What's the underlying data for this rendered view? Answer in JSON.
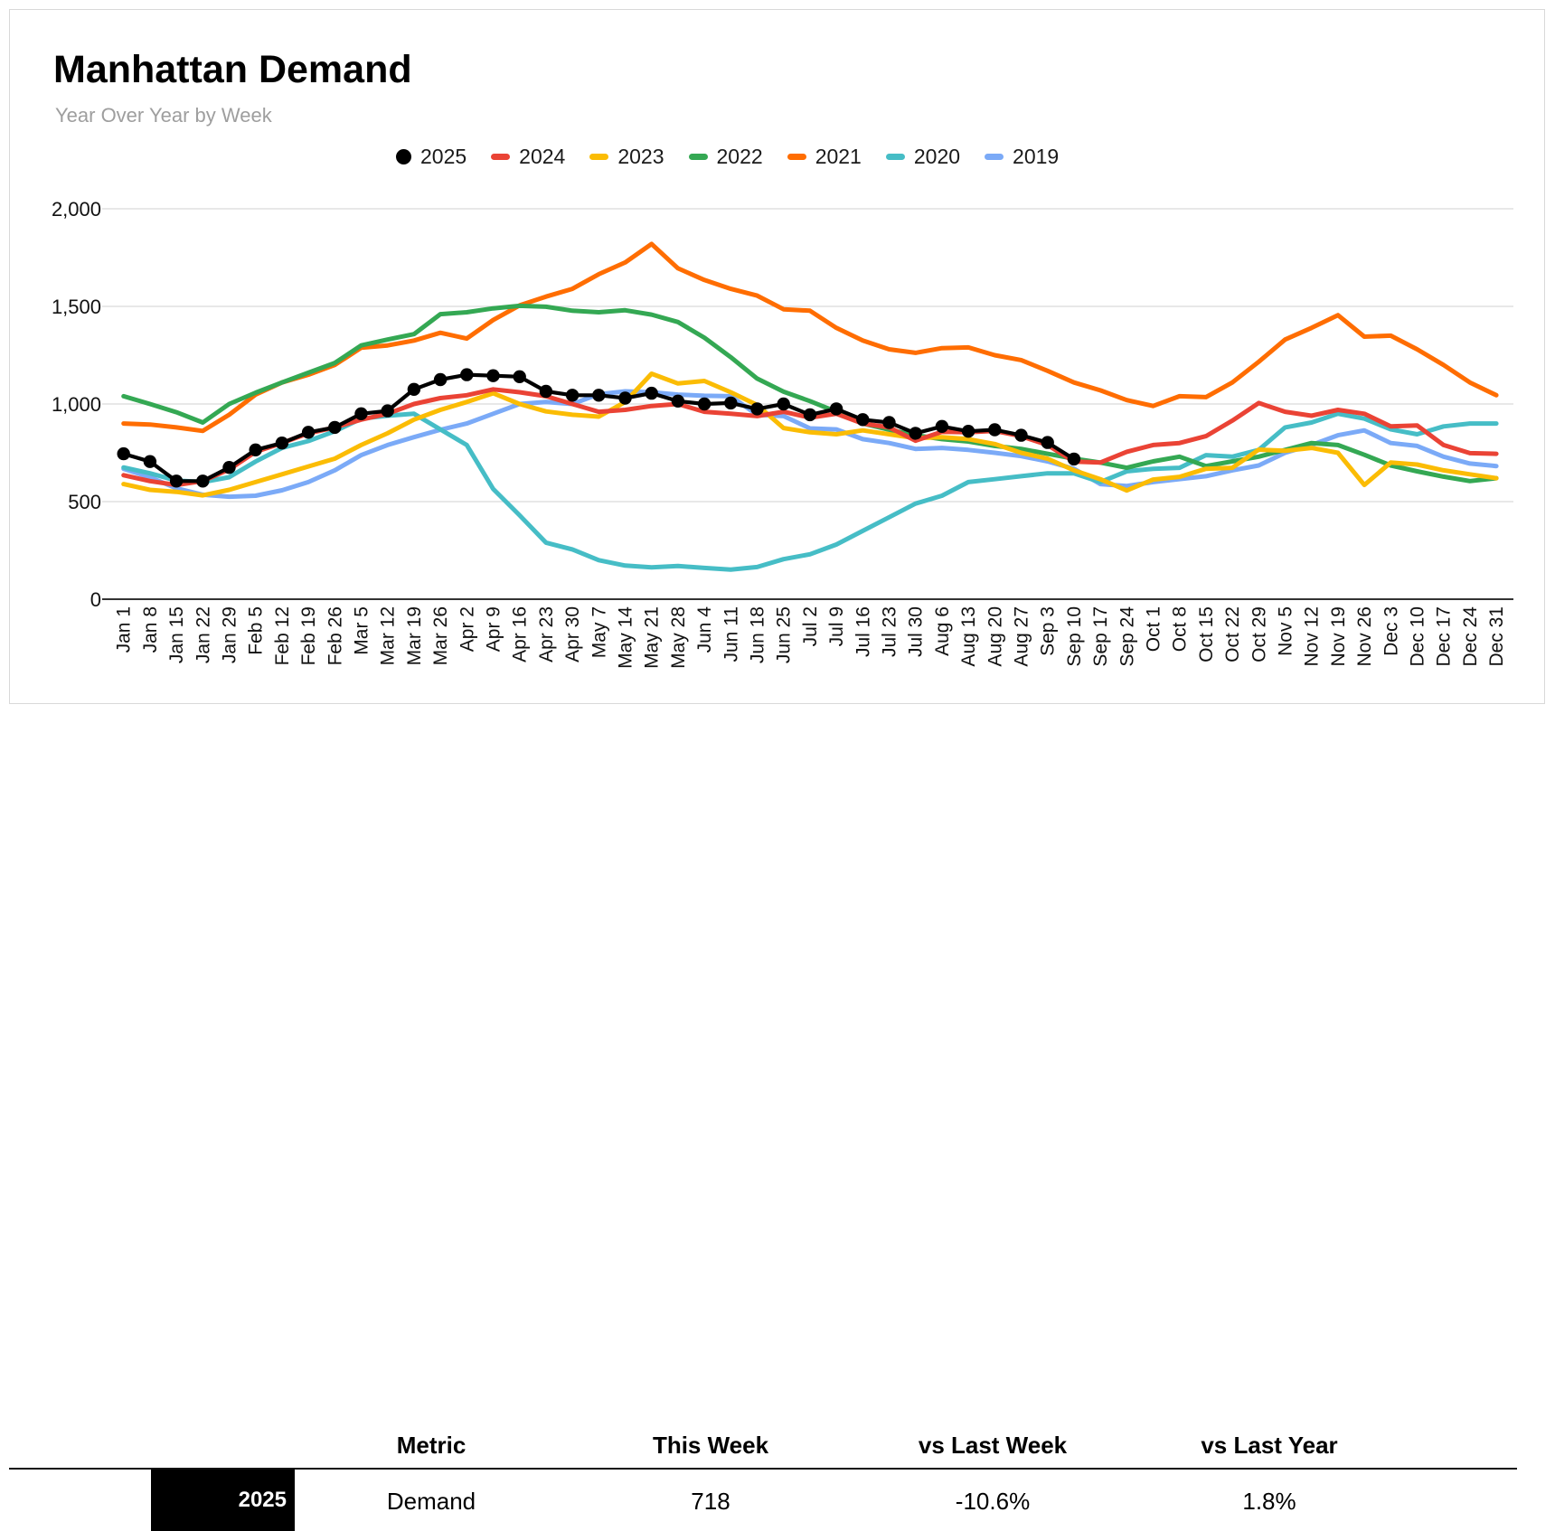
{
  "chart_data": {
    "type": "line",
    "title": "Manhattan Demand",
    "subtitle": "Year Over Year by Week",
    "xlabel": "",
    "ylabel": "",
    "ylim": [
      0,
      2000
    ],
    "grid": "horizontal",
    "legend_position": "top",
    "yticks": [
      {
        "label": "0",
        "value": 0
      },
      {
        "label": "500",
        "value": 500
      },
      {
        "label": "1,000",
        "value": 1000
      },
      {
        "label": "1,500",
        "value": 1500
      },
      {
        "label": "2,000",
        "value": 2000
      }
    ],
    "x_labels": [
      "Jan 1",
      "Jan 8",
      "Jan 15",
      "Jan 22",
      "Jan 29",
      "Feb 5",
      "Feb 12",
      "Feb 19",
      "Feb 26",
      "Mar 5",
      "Mar 12",
      "Mar 19",
      "Mar 26",
      "Apr 2",
      "Apr 9",
      "Apr 16",
      "Apr 23",
      "Apr 30",
      "May 7",
      "May 14",
      "May 21",
      "May 28",
      "Jun 4",
      "Jun 11",
      "Jun 18",
      "Jun 25",
      "Jul 2",
      "Jul 9",
      "Jul 16",
      "Jul 23",
      "Jul 30",
      "Aug 6",
      "Aug 13",
      "Aug 20",
      "Aug 27",
      "Sep 3",
      "Sep 10",
      "Sep 17",
      "Sep 24",
      "Oct 1",
      "Oct 8",
      "Oct 15",
      "Oct 22",
      "Oct 29",
      "Nov 5",
      "Nov 12",
      "Nov 19",
      "Nov 26",
      "Dec 3",
      "Dec 10",
      "Dec 17",
      "Dec 24",
      "Dec 31"
    ],
    "series": [
      {
        "name": "2025",
        "color": "#000000",
        "marker": "circle",
        "values": [
          745,
          705,
          605,
          605,
          675,
          765,
          800,
          855,
          880,
          950,
          965,
          1075,
          1125,
          1150,
          1145,
          1140,
          1065,
          1045,
          1045,
          1030,
          1055,
          1015,
          1000,
          1005,
          975,
          1000,
          945,
          975,
          920,
          905,
          850,
          885,
          860,
          868,
          840,
          803,
          718
        ]
      },
      {
        "name": "2024",
        "color": "#ea4335",
        "marker": "dash",
        "values": [
          635,
          605,
          585,
          605,
          665,
          755,
          800,
          850,
          880,
          920,
          950,
          1000,
          1030,
          1045,
          1075,
          1060,
          1040,
          1000,
          960,
          970,
          990,
          1000,
          960,
          950,
          938,
          960,
          930,
          950,
          900,
          880,
          812,
          858,
          855,
          862,
          835,
          790,
          705,
          700,
          755,
          790,
          800,
          835,
          915,
          1005,
          960,
          940,
          970,
          950,
          885,
          890,
          790,
          748,
          745
        ]
      },
      {
        "name": "2023",
        "color": "#fbbc04",
        "marker": "dash",
        "values": [
          590,
          560,
          550,
          532,
          560,
          600,
          640,
          680,
          720,
          790,
          850,
          920,
          970,
          1010,
          1055,
          1000,
          962,
          945,
          935,
          1010,
          1155,
          1105,
          1118,
          1060,
          995,
          877,
          855,
          845,
          865,
          845,
          825,
          830,
          820,
          795,
          750,
          720,
          660,
          615,
          557,
          613,
          627,
          668,
          673,
          766,
          760,
          775,
          750,
          585,
          700,
          690,
          660,
          640,
          620
        ]
      },
      {
        "name": "2022",
        "color": "#34a853",
        "marker": "dash",
        "values": [
          1040,
          1000,
          958,
          905,
          1000,
          1058,
          1110,
          1160,
          1210,
          1300,
          1330,
          1358,
          1460,
          1470,
          1490,
          1503,
          1498,
          1478,
          1470,
          1480,
          1458,
          1420,
          1340,
          1240,
          1130,
          1063,
          1015,
          960,
          900,
          868,
          840,
          820,
          808,
          785,
          770,
          745,
          720,
          700,
          673,
          706,
          730,
          682,
          706,
          730,
          765,
          800,
          790,
          740,
          685,
          655,
          628,
          605,
          620
        ]
      },
      {
        "name": "2021",
        "color": "#ff6d01",
        "marker": "dash",
        "values": [
          900,
          895,
          880,
          862,
          945,
          1048,
          1110,
          1150,
          1200,
          1288,
          1300,
          1325,
          1365,
          1335,
          1430,
          1505,
          1550,
          1590,
          1665,
          1725,
          1820,
          1695,
          1635,
          1590,
          1555,
          1485,
          1478,
          1390,
          1325,
          1280,
          1262,
          1286,
          1290,
          1250,
          1225,
          1170,
          1110,
          1070,
          1020,
          990,
          1040,
          1035,
          1110,
          1216,
          1330,
          1390,
          1455,
          1345,
          1350,
          1280,
          1200,
          1110,
          1045
        ]
      },
      {
        "name": "2020",
        "color": "#46bdc6",
        "marker": "dash",
        "values": [
          675,
          645,
          608,
          600,
          625,
          705,
          775,
          810,
          860,
          925,
          940,
          950,
          870,
          790,
          565,
          430,
          290,
          255,
          200,
          172,
          163,
          170,
          160,
          152,
          165,
          205,
          230,
          280,
          350,
          420,
          490,
          530,
          600,
          615,
          630,
          645,
          645,
          600,
          655,
          668,
          673,
          738,
          730,
          765,
          880,
          905,
          950,
          925,
          870,
          845,
          885,
          900,
          900
        ]
      },
      {
        "name": "2019",
        "color": "#7baaf7",
        "marker": "dash",
        "values": [
          668,
          625,
          568,
          535,
          525,
          530,
          558,
          600,
          660,
          738,
          790,
          830,
          868,
          900,
          950,
          1000,
          1010,
          1000,
          1050,
          1065,
          1060,
          1048,
          1042,
          1040,
          945,
          938,
          875,
          870,
          820,
          800,
          770,
          775,
          765,
          750,
          733,
          706,
          668,
          590,
          580,
          600,
          615,
          630,
          660,
          685,
          750,
          790,
          840,
          865,
          800,
          785,
          730,
          695,
          682
        ]
      }
    ]
  },
  "table": {
    "columns": [
      "Metric",
      "This Week",
      "vs Last Week",
      "vs Last Year"
    ],
    "row": {
      "year": "2025",
      "year_bg": "#000000",
      "metric": "Demand",
      "this_week": "718",
      "vs_last_week": "-10.6%",
      "vs_last_year": "1.8%"
    }
  }
}
